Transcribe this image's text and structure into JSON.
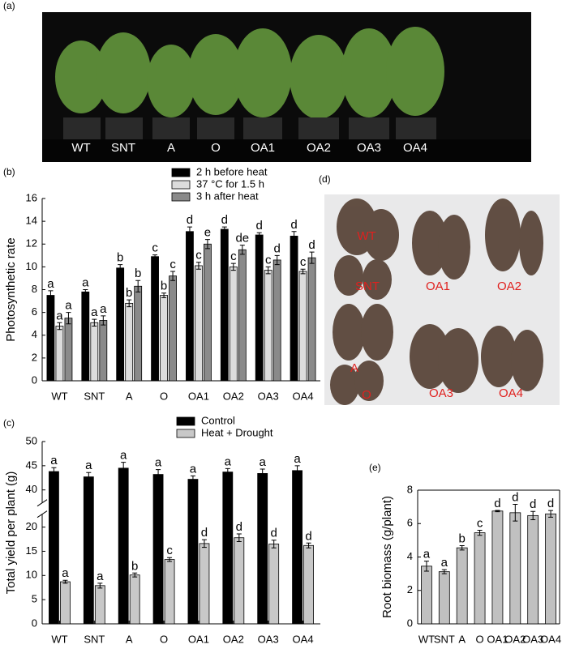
{
  "photos": [
    {
      "panel_label": "(a)",
      "labels": [
        "WT",
        "SNT",
        "A",
        "O",
        "OA1",
        "OA2",
        "OA3",
        "OA4"
      ]
    },
    {
      "panel_label": "(d)",
      "labels": [
        "WT",
        "SNT",
        "OA1",
        "OA2",
        "A",
        "O",
        "OA3",
        "OA4"
      ]
    }
  ],
  "chart_data": [
    {
      "type": "bar",
      "panel_label": "(b)",
      "y_label": "Photosynthetic rate",
      "categories": [
        "WT",
        "SNT",
        "A",
        "O",
        "OA1",
        "OA2",
        "OA3",
        "OA4"
      ],
      "series": [
        {
          "name": "2 h before heat",
          "color": "#000000",
          "values": [
            7.5,
            7.8,
            9.9,
            10.9,
            13.1,
            13.3,
            12.8,
            12.7
          ],
          "errors": [
            0.4,
            0.2,
            0.3,
            0.15,
            0.4,
            0.2,
            0.2,
            0.4
          ],
          "letters": [
            "a",
            "a",
            "b",
            "c",
            "d",
            "d",
            "d",
            "d"
          ]
        },
        {
          "name": "37 °C for 1.5 h",
          "color": "#dcdcdc",
          "values": [
            4.8,
            5.1,
            6.8,
            7.5,
            10.1,
            10.0,
            9.7,
            9.6
          ],
          "errors": [
            0.3,
            0.3,
            0.3,
            0.2,
            0.3,
            0.3,
            0.3,
            0.2
          ],
          "letters": [
            "a",
            "a",
            "b",
            "b",
            "c",
            "c",
            "c",
            "c"
          ]
        },
        {
          "name": "3 h after heat",
          "color": "#8a8a8a",
          "values": [
            5.5,
            5.3,
            8.3,
            9.2,
            12.0,
            11.5,
            10.6,
            10.8
          ],
          "errors": [
            0.5,
            0.4,
            0.5,
            0.4,
            0.4,
            0.4,
            0.4,
            0.5
          ],
          "letters": [
            "a",
            "a",
            "b",
            "c",
            "e",
            "de",
            "d",
            "d"
          ]
        }
      ],
      "ylim": [
        0,
        16
      ],
      "yticks": [
        0,
        2,
        4,
        6,
        8,
        10,
        12,
        14,
        16
      ],
      "frame": false
    },
    {
      "type": "bar",
      "panel_label": "(c)",
      "y_label": "Total yield per plant (g)",
      "categories": [
        "WT",
        "SNT",
        "A",
        "O",
        "OA1",
        "OA2",
        "OA3",
        "OA4"
      ],
      "series": [
        {
          "name": "Control",
          "color": "#000000",
          "values": [
            43.8,
            42.7,
            44.5,
            43.2,
            42.2,
            43.7,
            43.4,
            44.0
          ],
          "errors": [
            0.8,
            0.9,
            1.2,
            1.0,
            0.7,
            0.7,
            0.9,
            1.0
          ],
          "letters": [
            "a",
            "a",
            "a",
            "a",
            "a",
            "a",
            "a",
            "a"
          ]
        },
        {
          "name": "Heat + Drought",
          "color": "#c8c8c8",
          "values": [
            8.7,
            7.9,
            10.1,
            13.3,
            16.6,
            17.8,
            16.5,
            16.2
          ],
          "errors": [
            0.3,
            0.5,
            0.4,
            0.4,
            0.8,
            0.8,
            0.8,
            0.5
          ],
          "letters": [
            "a",
            "a",
            "b",
            "c",
            "d",
            "d",
            "d",
            "d"
          ]
        }
      ],
      "ylim": [
        0,
        50
      ],
      "y_break": [
        22,
        38
      ],
      "yticks": [
        0,
        5,
        10,
        15,
        20,
        40,
        45,
        50
      ],
      "frame": false
    },
    {
      "type": "bar",
      "panel_label": "(e)",
      "y_label": "Root biomass (g/plant)",
      "categories": [
        "WT",
        "SNT",
        "A",
        "O",
        "OA1",
        "OA2",
        "OA3",
        "OA4"
      ],
      "series": [
        {
          "color": "#c0c0c0",
          "values": [
            3.45,
            3.12,
            4.55,
            5.45,
            6.75,
            6.65,
            6.48,
            6.58
          ],
          "errors": [
            0.3,
            0.12,
            0.13,
            0.15,
            0.04,
            0.5,
            0.25,
            0.2
          ],
          "letters": [
            "a",
            "a",
            "b",
            "c",
            "d",
            "d",
            "d",
            "d"
          ]
        }
      ],
      "ylim": [
        0,
        8
      ],
      "yticks": [
        0,
        2,
        4,
        6,
        8
      ],
      "frame": true
    }
  ]
}
